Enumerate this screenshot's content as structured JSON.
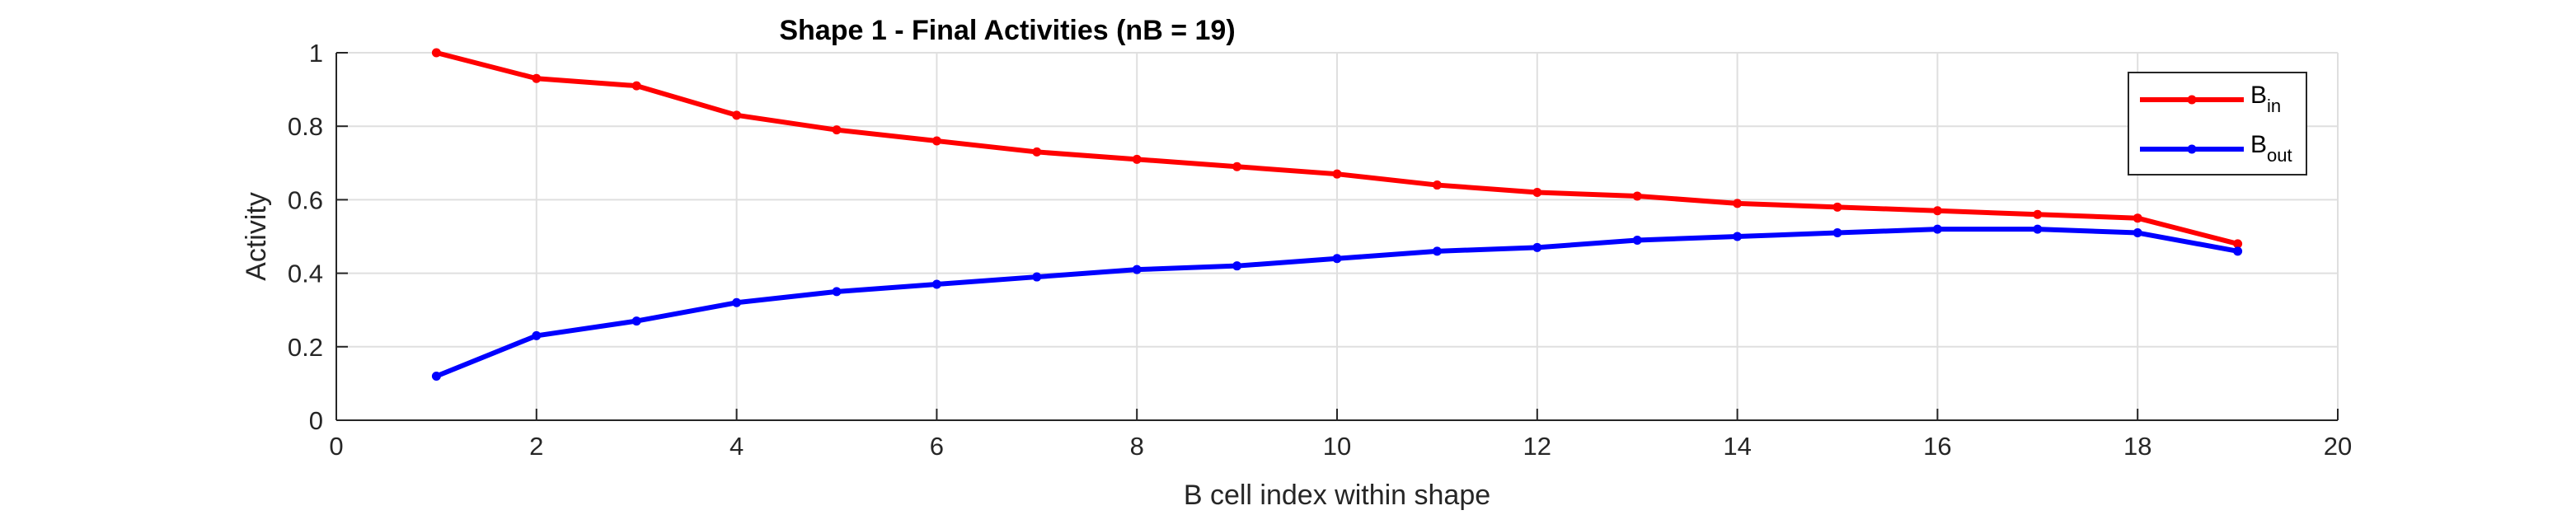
{
  "chart_data": {
    "type": "line",
    "title": "Shape 1 - Final Activities (nB = 19)",
    "xlabel": "B cell index within shape",
    "ylabel": "Activity",
    "xlim": [
      0,
      20
    ],
    "ylim": [
      0,
      1
    ],
    "xticks": [
      0,
      2,
      4,
      6,
      8,
      10,
      12,
      14,
      16,
      18,
      20
    ],
    "yticks": [
      0,
      0.2,
      0.4,
      0.6,
      0.8,
      1
    ],
    "grid": true,
    "legend_position": "top-right",
    "x": [
      1,
      2,
      3,
      4,
      5,
      6,
      7,
      8,
      9,
      10,
      11,
      12,
      13,
      14,
      15,
      16,
      17,
      18,
      19
    ],
    "series": [
      {
        "name": "B_in",
        "label_main": "B",
        "label_sub": "in",
        "color": "#ff0000",
        "values": [
          1.0,
          0.93,
          0.91,
          0.83,
          0.79,
          0.76,
          0.73,
          0.71,
          0.69,
          0.67,
          0.64,
          0.62,
          0.61,
          0.59,
          0.58,
          0.57,
          0.56,
          0.55,
          0.48
        ]
      },
      {
        "name": "B_out",
        "label_main": "B",
        "label_sub": "out",
        "color": "#0000ff",
        "values": [
          0.12,
          0.23,
          0.27,
          0.32,
          0.35,
          0.37,
          0.39,
          0.41,
          0.42,
          0.44,
          0.46,
          0.47,
          0.49,
          0.5,
          0.51,
          0.52,
          0.52,
          0.51,
          0.46
        ]
      }
    ]
  }
}
